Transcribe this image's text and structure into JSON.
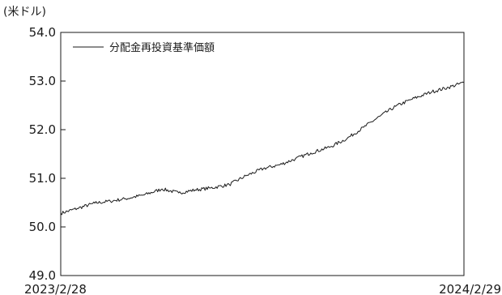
{
  "chart_data": {
    "type": "line",
    "title": "",
    "ylabel": "(米ドル)",
    "xlabel": "",
    "ylim": [
      49.0,
      54.0
    ],
    "yticks": [
      "54.0",
      "53.0",
      "52.0",
      "51.0",
      "50.0",
      "49.0"
    ],
    "xticks": [
      "2023/2/28",
      "2024/2/29"
    ],
    "legend_position": "top-left",
    "grid": false,
    "series": [
      {
        "name": "分配金再投資基準価額",
        "color": "#1a1a1a",
        "x": [
          "2023/2/28",
          "2023/3/15",
          "2023/3/31",
          "2023/4/14",
          "2023/4/28",
          "2023/5/15",
          "2023/5/31",
          "2023/6/15",
          "2023/6/30",
          "2023/7/14",
          "2023/7/31",
          "2023/8/15",
          "2023/8/31",
          "2023/9/15",
          "2023/9/29",
          "2023/10/13",
          "2023/10/31",
          "2023/11/15",
          "2023/11/30",
          "2023/12/15",
          "2023/12/29",
          "2024/1/12",
          "2024/1/31",
          "2024/2/15",
          "2024/2/29"
        ],
        "values": [
          50.28,
          50.38,
          50.49,
          50.53,
          50.58,
          50.66,
          50.78,
          50.7,
          50.76,
          50.8,
          50.87,
          51.05,
          51.2,
          51.28,
          51.4,
          51.52,
          51.65,
          51.82,
          52.05,
          52.28,
          52.48,
          52.62,
          52.78,
          52.87,
          52.97
        ]
      }
    ]
  }
}
